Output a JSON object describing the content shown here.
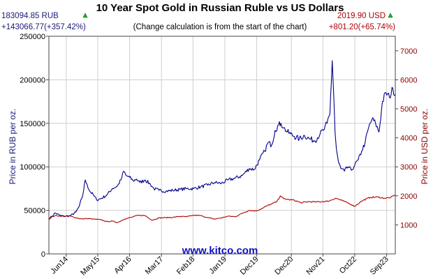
{
  "chart_data": {
    "type": "line",
    "title": "10 Year Spot Gold in Russian Ruble vs US Dollars",
    "subtitle": "(Change calculation is from the start of the chart)",
    "source": "www.kitco.com",
    "summary_left": {
      "price": "183094.85 RUB",
      "change": "+143066.77(+357.42%)",
      "direction": "up",
      "color": "#1a1a7a"
    },
    "summary_right": {
      "price": "2019.90 USD",
      "change": "+801.20(+65.74%)",
      "direction": "up",
      "color": "#b00000"
    },
    "ylabel_left": "Price in RUB per oz.",
    "ylabel_right": "Price in USD per oz.",
    "ylim_left": [
      0,
      250000
    ],
    "yticks_left": [
      "0",
      "50000",
      "100000",
      "150000",
      "200000",
      "250000"
    ],
    "ylim_right": [
      0,
      7500
    ],
    "yticks_right": [
      "1000",
      "2000",
      "3000",
      "4000",
      "5000",
      "6000",
      "7000"
    ],
    "xlim": [
      2013.92,
      2023.92
    ],
    "x_tick_labels": [
      "Jun14",
      "May15",
      "Apr16",
      "Mar17",
      "Feb18",
      "Jan19",
      "Dec19",
      "Dec20",
      "Nov21",
      "Oct22",
      "Sep23"
    ],
    "x_tick_positions": [
      2014.42,
      2015.33,
      2016.25,
      2017.17,
      2018.08,
      2019.0,
      2019.92,
      2020.92,
      2021.83,
      2022.75,
      2023.67
    ],
    "grid": true,
    "series": [
      {
        "name": "RUB",
        "axis": "left",
        "color": "#00008b",
        "x": [
          2013.92,
          2014.0,
          2014.1,
          2014.25,
          2014.4,
          2014.55,
          2014.7,
          2014.8,
          2014.9,
          2014.97,
          2015.02,
          2015.1,
          2015.2,
          2015.3,
          2015.45,
          2015.6,
          2015.75,
          2015.9,
          2016.0,
          2016.08,
          2016.15,
          2016.25,
          2016.35,
          2016.45,
          2016.55,
          2016.7,
          2016.85,
          2016.95,
          2017.1,
          2017.3,
          2017.5,
          2017.7,
          2017.9,
          2018.1,
          2018.3,
          2018.5,
          2018.7,
          2018.9,
          2019.1,
          2019.3,
          2019.5,
          2019.7,
          2019.85,
          2020.0,
          2020.15,
          2020.25,
          2020.35,
          2020.45,
          2020.55,
          2020.62,
          2020.7,
          2020.8,
          2020.9,
          2021.0,
          2021.15,
          2021.3,
          2021.45,
          2021.6,
          2021.75,
          2021.85,
          2021.95,
          2022.03,
          2022.1,
          2022.15,
          2022.18,
          2022.22,
          2022.28,
          2022.35,
          2022.45,
          2022.55,
          2022.65,
          2022.75,
          2022.85,
          2022.95,
          2023.05,
          2023.15,
          2023.25,
          2023.35,
          2023.45,
          2023.55,
          2023.65,
          2023.75,
          2023.85,
          2023.92
        ],
        "y": [
          40000,
          43000,
          47000,
          44000,
          43000,
          44000,
          48000,
          55000,
          68000,
          85000,
          80000,
          72000,
          68000,
          62000,
          64000,
          68000,
          75000,
          78000,
          85000,
          95000,
          90000,
          88000,
          84000,
          86000,
          82000,
          85000,
          80000,
          75000,
          73000,
          72000,
          73000,
          74000,
          75000,
          75000,
          77000,
          79000,
          82000,
          81000,
          85000,
          87000,
          90000,
          98000,
          97000,
          108000,
          118000,
          128000,
          125000,
          142000,
          148000,
          150000,
          145000,
          140000,
          138000,
          135000,
          132000,
          136000,
          132000,
          130000,
          138000,
          142000,
          150000,
          160000,
          222000,
          175000,
          140000,
          120000,
          105000,
          98000,
          95000,
          100000,
          96000,
          102000,
          108000,
          118000,
          128000,
          145000,
          155000,
          150000,
          140000,
          175000,
          185000,
          180000,
          190000,
          183095
        ]
      },
      {
        "name": "USD",
        "axis": "right",
        "color": "#b00000",
        "x": [
          2013.92,
          2014.1,
          2014.25,
          2014.5,
          2014.75,
          2014.9,
          2015.0,
          2015.2,
          2015.4,
          2015.6,
          2015.75,
          2015.9,
          2016.1,
          2016.3,
          2016.5,
          2016.7,
          2016.9,
          2017.1,
          2017.3,
          2017.5,
          2017.7,
          2017.9,
          2018.1,
          2018.3,
          2018.5,
          2018.7,
          2018.9,
          2019.1,
          2019.3,
          2019.5,
          2019.7,
          2019.9,
          2020.1,
          2020.2,
          2020.35,
          2020.5,
          2020.6,
          2020.7,
          2020.85,
          2021.0,
          2021.2,
          2021.4,
          2021.6,
          2021.8,
          2022.0,
          2022.2,
          2022.4,
          2022.6,
          2022.75,
          2022.9,
          2023.0,
          2023.2,
          2023.4,
          2023.6,
          2023.75,
          2023.92
        ],
        "y": [
          1219,
          1320,
          1300,
          1310,
          1230,
          1200,
          1220,
          1200,
          1180,
          1110,
          1130,
          1080,
          1200,
          1260,
          1330,
          1320,
          1160,
          1240,
          1250,
          1260,
          1290,
          1280,
          1330,
          1320,
          1250,
          1200,
          1240,
          1300,
          1280,
          1400,
          1500,
          1480,
          1580,
          1650,
          1720,
          1800,
          2000,
          1900,
          1870,
          1850,
          1760,
          1800,
          1790,
          1800,
          1820,
          1920,
          1830,
          1730,
          1640,
          1780,
          1850,
          1950,
          1960,
          1920,
          1930,
          2020
        ]
      }
    ]
  }
}
